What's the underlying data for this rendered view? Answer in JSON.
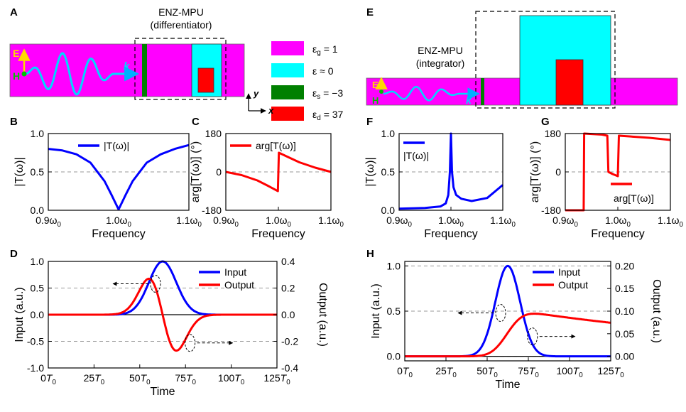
{
  "panels": {
    "A": {
      "letter": "A",
      "mpu_label_1": "ENZ-MPU",
      "mpu_label_2": "(differentiator)",
      "field_e": "E",
      "field_h": "H",
      "wave_k": "k"
    },
    "E": {
      "letter": "E",
      "mpu_label_1": "ENZ-MPU",
      "mpu_label_2": "(integrator)",
      "field_e": "E",
      "field_h": "H",
      "wave_k": "k"
    },
    "axes_y": "y",
    "axes_x": "x",
    "legend": [
      {
        "label": "ε₉ = 1",
        "text": "εg = 1",
        "color": "#ff00ff"
      },
      {
        "label": "ε ≈ 0",
        "text": "ε ≈ 0",
        "color": "#00ffff"
      },
      {
        "label": "εs = −3",
        "text": "εs = −3",
        "color": "#008000"
      },
      {
        "label": "εd = 37",
        "text": "εd = 37",
        "color": "#ff0000"
      }
    ]
  },
  "chart_data": [
    {
      "panel": "B",
      "type": "line",
      "xlabel": "Frequency",
      "ylabel": "|T(ω)|",
      "xticks": [
        "0.9ω0",
        "1.0ω0",
        "1.1ω0"
      ],
      "xlim": [
        0.9,
        1.1
      ],
      "yticks": [
        "0.0",
        "0.5",
        "1.0"
      ],
      "ylim": [
        0,
        1
      ],
      "legend": "|T(ω)|",
      "series": [
        {
          "name": "|T(ω)|",
          "color": "#0000ff",
          "x": [
            0.9,
            0.92,
            0.94,
            0.96,
            0.98,
            0.99,
            1.0,
            1.01,
            1.02,
            1.04,
            1.06,
            1.08,
            1.1
          ],
          "y": [
            0.8,
            0.78,
            0.73,
            0.62,
            0.38,
            0.2,
            0.01,
            0.2,
            0.38,
            0.62,
            0.73,
            0.8,
            0.85
          ]
        }
      ]
    },
    {
      "panel": "C",
      "type": "line",
      "xlabel": "Frequency",
      "ylabel": "arg[T(ω)] (°)",
      "xticks": [
        "0.9ω0",
        "1.0ω0",
        "1.1ω0"
      ],
      "xlim": [
        0.9,
        1.1
      ],
      "yticks": [
        "-180",
        "0",
        "180"
      ],
      "ylim": [
        -180,
        180
      ],
      "legend": "arg[T(ω)]",
      "series": [
        {
          "name": "arg[T(ω)]",
          "color": "#ff0000",
          "x": [
            0.9,
            0.93,
            0.96,
            0.98,
            0.999,
            1.001,
            1.02,
            1.04,
            1.07,
            1.1
          ],
          "y": [
            0,
            -15,
            -40,
            -65,
            -90,
            90,
            68,
            45,
            20,
            0
          ]
        }
      ]
    },
    {
      "panel": "D",
      "type": "line",
      "xlabel": "Time",
      "ylabel": "Input (a.u.)",
      "y2label": "Output (a.u.)",
      "xticks": [
        "0T0",
        "25T0",
        "50T0",
        "75T0",
        "100T0",
        "125T0"
      ],
      "xlim": [
        0,
        125
      ],
      "yticks": [
        "-1.0",
        "-0.5",
        "0.0",
        "0.5",
        "1.0"
      ],
      "ylim": [
        -1,
        1
      ],
      "y2ticks": [
        "-0.4",
        "-0.2",
        "0.0",
        "0.2",
        "0.4"
      ],
      "y2lim": [
        -0.4,
        0.4
      ],
      "legend": [
        "Input",
        "Output"
      ],
      "series": [
        {
          "name": "Input",
          "color": "#0000ff",
          "axis": "left",
          "gaussian": {
            "amp": 1.0,
            "center": 62.5,
            "sigma": 7.5
          }
        },
        {
          "name": "Output",
          "color": "#ff0000",
          "axis": "right",
          "derivative": {
            "amp": 0.27,
            "center": 62.5,
            "sigma": 7.5
          }
        }
      ]
    },
    {
      "panel": "F",
      "type": "line",
      "xlabel": "Frequency",
      "ylabel": "|T(ω)|",
      "xticks": [
        "0.9ω0",
        "1.0ω0",
        "1.1ω0"
      ],
      "xlim": [
        0.9,
        1.1
      ],
      "yticks": [
        "0.0",
        "0.5",
        "1.0"
      ],
      "ylim": [
        0,
        1
      ],
      "legend": "|T(ω)|",
      "series": [
        {
          "name": "|T(ω)|",
          "color": "#0000ff",
          "x": [
            0.9,
            0.95,
            0.98,
            0.99,
            0.995,
            0.998,
            1.0,
            1.002,
            1.005,
            1.01,
            1.02,
            1.04,
            1.07,
            1.1
          ],
          "y": [
            0.02,
            0.03,
            0.05,
            0.09,
            0.2,
            0.5,
            1.0,
            0.5,
            0.3,
            0.2,
            0.15,
            0.12,
            0.16,
            0.33
          ]
        }
      ]
    },
    {
      "panel": "G",
      "type": "line",
      "xlabel": "Frequency",
      "ylabel": "arg[T(ω)] (°)",
      "xticks": [
        "0.9ω0",
        "1.0ω0",
        "1.1ω0"
      ],
      "xlim": [
        0.9,
        1.1
      ],
      "yticks": [
        "-180",
        "0",
        "180"
      ],
      "ylim": [
        -180,
        180
      ],
      "legend": "arg[T(ω)]",
      "series": [
        {
          "name": "arg[T(ω)]",
          "color": "#ff0000",
          "x": [
            0.9,
            0.935,
            0.936,
            0.97,
            0.98,
            0.982,
            0.99,
            1.0,
            1.002,
            1.06,
            1.1
          ],
          "y": [
            -180,
            -180,
            180,
            175,
            170,
            0,
            -10,
            -20,
            170,
            160,
            150
          ]
        }
      ]
    },
    {
      "panel": "H",
      "type": "line",
      "xlabel": "Time",
      "ylabel": "Input (a.u.)",
      "y2label": "Output (a.u.)",
      "xticks": [
        "0T0",
        "25T0",
        "50T0",
        "75T0",
        "100T0",
        "125T0"
      ],
      "xlim": [
        0,
        125
      ],
      "yticks": [
        "0.0",
        "0.5",
        "1.0"
      ],
      "ylim": [
        -0.05,
        1.05
      ],
      "y2ticks": [
        "0.00",
        "0.05",
        "0.10",
        "0.15",
        "0.20"
      ],
      "y2lim": [
        -0.01,
        0.21
      ],
      "legend": [
        "Input",
        "Output"
      ],
      "series": [
        {
          "name": "Input",
          "color": "#0000ff",
          "axis": "left",
          "gaussian": {
            "amp": 1.0,
            "center": 62.5,
            "sigma": 7.5
          }
        },
        {
          "name": "Output",
          "color": "#ff0000",
          "axis": "right",
          "integral": {
            "amp": 0.105,
            "center": 62.5,
            "sigma": 7.5,
            "decay": 0.0055
          }
        }
      ]
    }
  ]
}
